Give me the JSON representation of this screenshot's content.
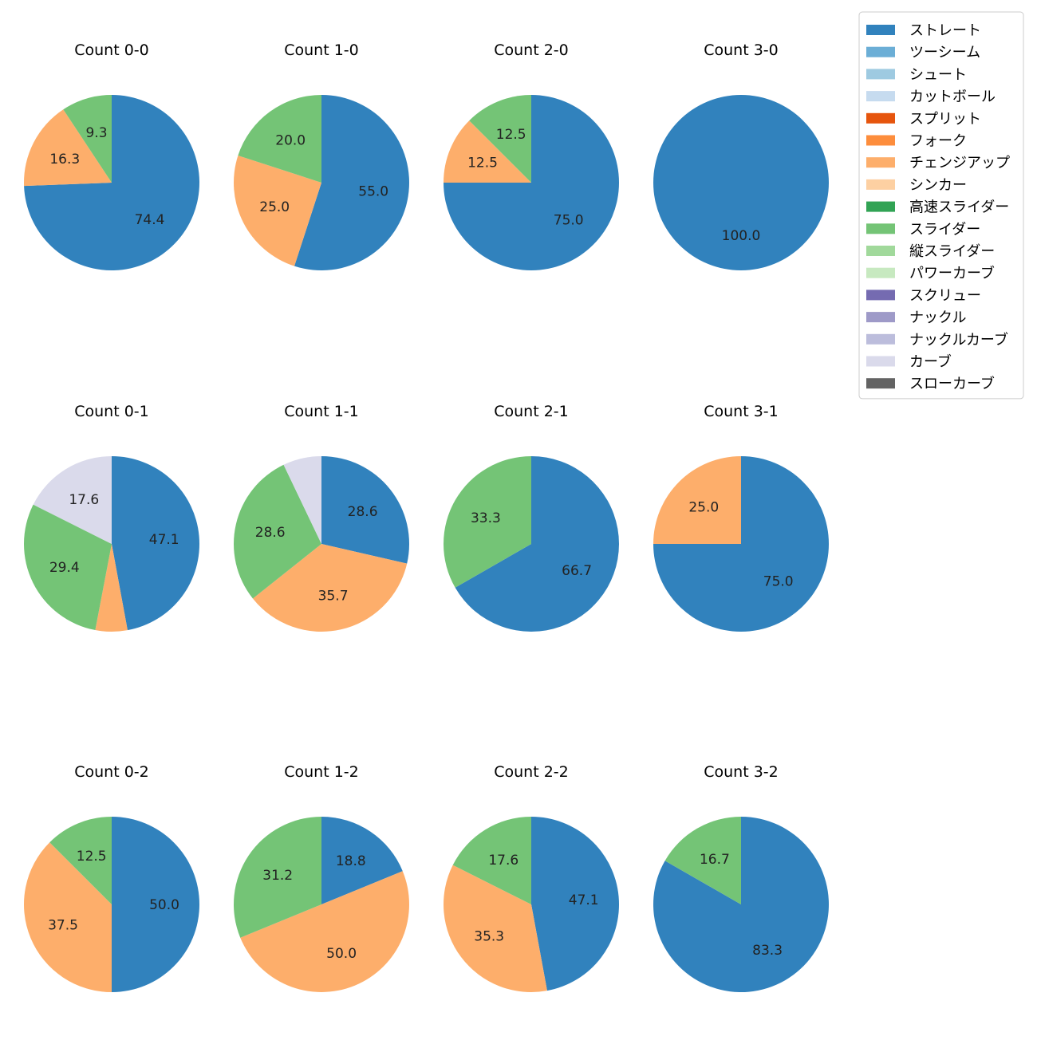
{
  "legend": {
    "placement": "upper-right",
    "items": [
      {
        "label": "ストレート",
        "color": "#3182bd"
      },
      {
        "label": "ツーシーム",
        "color": "#6baed6"
      },
      {
        "label": "シュート",
        "color": "#9ecae1"
      },
      {
        "label": "カットボール",
        "color": "#c6dbef"
      },
      {
        "label": "スプリット",
        "color": "#e6550d"
      },
      {
        "label": "フォーク",
        "color": "#fd8d3c"
      },
      {
        "label": "チェンジアップ",
        "color": "#fdae6b"
      },
      {
        "label": "シンカー",
        "color": "#fdd0a2"
      },
      {
        "label": "高速スライダー",
        "color": "#31a354"
      },
      {
        "label": "スライダー",
        "color": "#74c476"
      },
      {
        "label": "縦スライダー",
        "color": "#a1d99b"
      },
      {
        "label": "パワーカーブ",
        "color": "#c7e9c0"
      },
      {
        "label": "スクリュー",
        "color": "#756bb1"
      },
      {
        "label": "ナックル",
        "color": "#9e9ac8"
      },
      {
        "label": "ナックルカーブ",
        "color": "#bcbddc"
      },
      {
        "label": "カーブ",
        "color": "#dadaeb"
      },
      {
        "label": "スローカーブ",
        "color": "#636363"
      }
    ]
  },
  "chart_data": [
    {
      "type": "pie",
      "title": "Count 0-0",
      "slices": [
        {
          "category": "ストレート",
          "value": 74.4,
          "label": "74.4"
        },
        {
          "category": "チェンジアップ",
          "value": 16.3,
          "label": "16.3"
        },
        {
          "category": "スライダー",
          "value": 9.3,
          "label": "9.3"
        }
      ]
    },
    {
      "type": "pie",
      "title": "Count 1-0",
      "slices": [
        {
          "category": "ストレート",
          "value": 55.0,
          "label": "55.0"
        },
        {
          "category": "チェンジアップ",
          "value": 25.0,
          "label": "25.0"
        },
        {
          "category": "スライダー",
          "value": 20.0,
          "label": "20.0"
        }
      ]
    },
    {
      "type": "pie",
      "title": "Count 2-0",
      "slices": [
        {
          "category": "ストレート",
          "value": 75.0,
          "label": "75.0"
        },
        {
          "category": "チェンジアップ",
          "value": 12.5,
          "label": "12.5"
        },
        {
          "category": "スライダー",
          "value": 12.5,
          "label": "12.5"
        }
      ]
    },
    {
      "type": "pie",
      "title": "Count 3-0",
      "slices": [
        {
          "category": "ストレート",
          "value": 100.0,
          "label": "100.0"
        }
      ]
    },
    {
      "type": "pie",
      "title": "Count 0-1",
      "slices": [
        {
          "category": "ストレート",
          "value": 47.1,
          "label": "47.1"
        },
        {
          "category": "チェンジアップ",
          "value": 5.9,
          "label": ""
        },
        {
          "category": "スライダー",
          "value": 29.4,
          "label": "29.4"
        },
        {
          "category": "カーブ",
          "value": 17.6,
          "label": "17.6"
        }
      ]
    },
    {
      "type": "pie",
      "title": "Count 1-1",
      "slices": [
        {
          "category": "ストレート",
          "value": 28.6,
          "label": "28.6"
        },
        {
          "category": "チェンジアップ",
          "value": 35.7,
          "label": "35.7"
        },
        {
          "category": "スライダー",
          "value": 28.6,
          "label": "28.6"
        },
        {
          "category": "カーブ",
          "value": 7.1,
          "label": ""
        }
      ]
    },
    {
      "type": "pie",
      "title": "Count 2-1",
      "slices": [
        {
          "category": "ストレート",
          "value": 66.7,
          "label": "66.7"
        },
        {
          "category": "スライダー",
          "value": 33.3,
          "label": "33.3"
        }
      ]
    },
    {
      "type": "pie",
      "title": "Count 3-1",
      "slices": [
        {
          "category": "ストレート",
          "value": 75.0,
          "label": "75.0"
        },
        {
          "category": "チェンジアップ",
          "value": 25.0,
          "label": "25.0"
        }
      ]
    },
    {
      "type": "pie",
      "title": "Count 0-2",
      "slices": [
        {
          "category": "ストレート",
          "value": 50.0,
          "label": "50.0"
        },
        {
          "category": "チェンジアップ",
          "value": 37.5,
          "label": "37.5"
        },
        {
          "category": "スライダー",
          "value": 12.5,
          "label": "12.5"
        }
      ]
    },
    {
      "type": "pie",
      "title": "Count 1-2",
      "slices": [
        {
          "category": "ストレート",
          "value": 18.8,
          "label": "18.8"
        },
        {
          "category": "チェンジアップ",
          "value": 50.0,
          "label": "50.0"
        },
        {
          "category": "スライダー",
          "value": 31.2,
          "label": "31.2"
        }
      ]
    },
    {
      "type": "pie",
      "title": "Count 2-2",
      "slices": [
        {
          "category": "ストレート",
          "value": 47.1,
          "label": "47.1"
        },
        {
          "category": "チェンジアップ",
          "value": 35.3,
          "label": "35.3"
        },
        {
          "category": "スライダー",
          "value": 17.6,
          "label": "17.6"
        }
      ]
    },
    {
      "type": "pie",
      "title": "Count 3-2",
      "slices": [
        {
          "category": "ストレート",
          "value": 83.3,
          "label": "83.3"
        },
        {
          "category": "スライダー",
          "value": 16.7,
          "label": "16.7"
        }
      ]
    }
  ]
}
